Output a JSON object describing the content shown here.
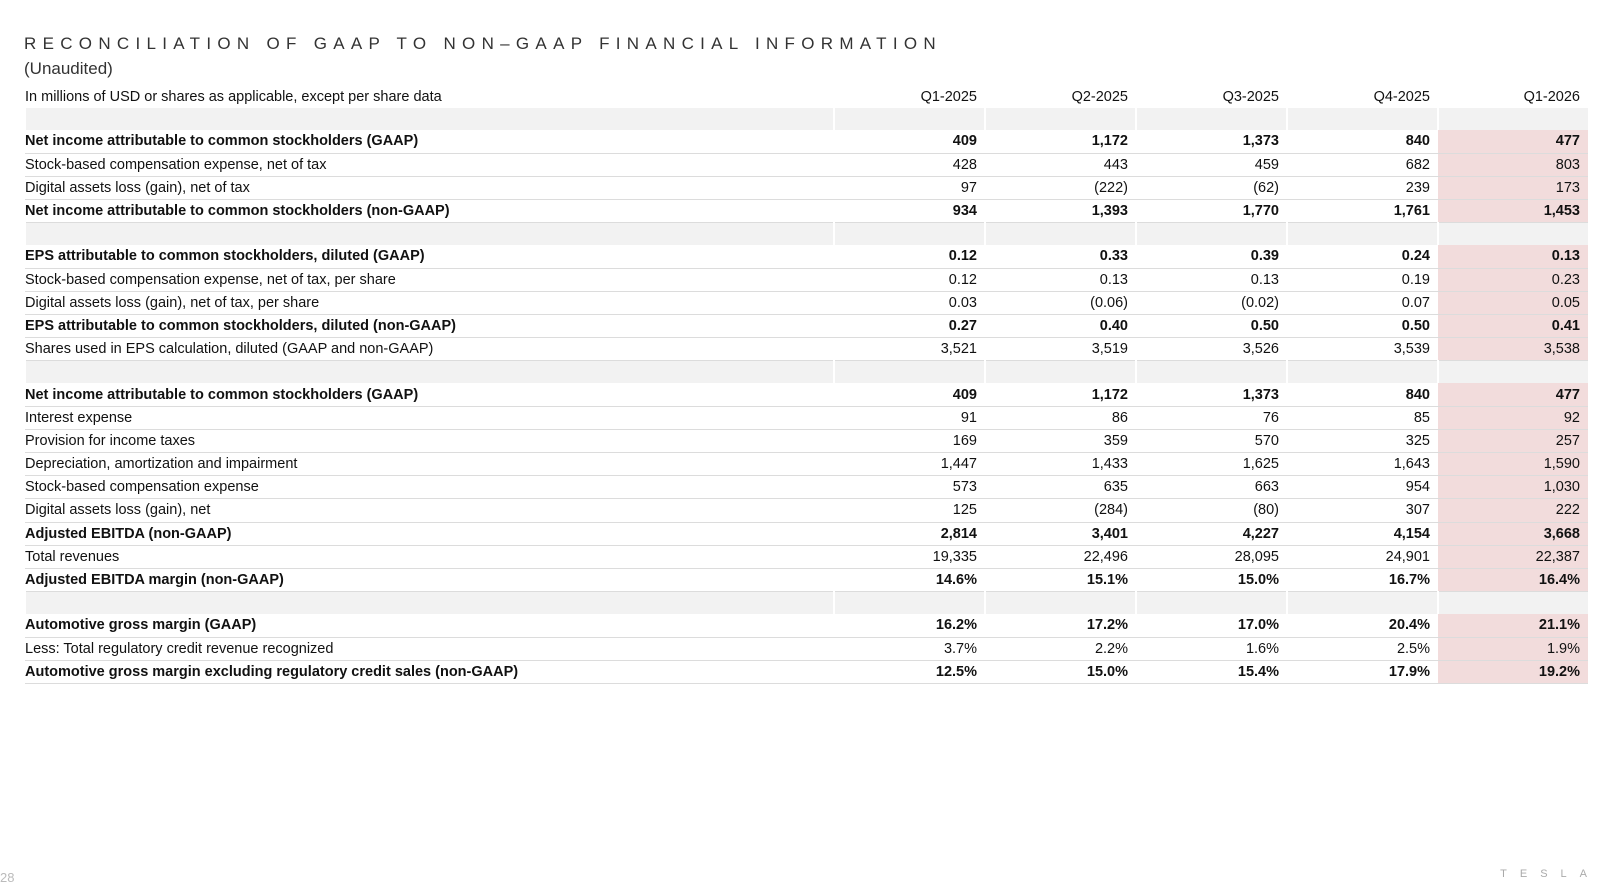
{
  "header": {
    "title": "RECONCILIATION OF GAAP TO NON–GAAP FINANCIAL INFORMATION",
    "subtitle": "(Unaudited)"
  },
  "table": {
    "columns": [
      "In millions of USD or shares as applicable, except per share data",
      "Q1-2025",
      "Q2-2025",
      "Q3-2025",
      "Q4-2025",
      "Q1-2026"
    ],
    "sections": [
      {
        "rows": [
          {
            "bold": true,
            "cells": [
              "Net income attributable to common stockholders (GAAP)",
              "409",
              "1,172",
              "1,373",
              "840",
              "477"
            ]
          },
          {
            "bold": false,
            "cells": [
              "Stock-based compensation expense, net of tax",
              "428",
              "443",
              "459",
              "682",
              "803"
            ]
          },
          {
            "bold": false,
            "cells": [
              "Digital assets loss (gain), net of tax",
              "97",
              "(222)",
              "(62)",
              "239",
              "173"
            ]
          },
          {
            "bold": true,
            "cells": [
              "Net income attributable to common stockholders (non-GAAP)",
              "934",
              "1,393",
              "1,770",
              "1,761",
              "1,453"
            ]
          }
        ]
      },
      {
        "rows": [
          {
            "bold": true,
            "cells": [
              "EPS attributable to common stockholders, diluted (GAAP)",
              "0.12",
              "0.33",
              "0.39",
              "0.24",
              "0.13"
            ]
          },
          {
            "bold": false,
            "cells": [
              "Stock-based compensation expense, net of tax, per share",
              "0.12",
              "0.13",
              "0.13",
              "0.19",
              "0.23"
            ]
          },
          {
            "bold": false,
            "cells": [
              "Digital assets loss (gain), net of tax, per share",
              "0.03",
              "(0.06)",
              "(0.02)",
              "0.07",
              "0.05"
            ]
          },
          {
            "bold": true,
            "cells": [
              "EPS attributable to common stockholders, diluted (non-GAAP)",
              "0.27",
              "0.40",
              "0.50",
              "0.50",
              "0.41"
            ]
          },
          {
            "bold": false,
            "cells": [
              "Shares used in EPS calculation, diluted (GAAP and non-GAAP)",
              "3,521",
              "3,519",
              "3,526",
              "3,539",
              "3,538"
            ]
          }
        ]
      },
      {
        "rows": [
          {
            "bold": true,
            "cells": [
              "Net income attributable to common stockholders (GAAP)",
              "409",
              "1,172",
              "1,373",
              "840",
              "477"
            ]
          },
          {
            "bold": false,
            "cells": [
              "Interest expense",
              "91",
              "86",
              "76",
              "85",
              "92"
            ]
          },
          {
            "bold": false,
            "cells": [
              "Provision for income taxes",
              "169",
              "359",
              "570",
              "325",
              "257"
            ]
          },
          {
            "bold": false,
            "cells": [
              "Depreciation, amortization and impairment",
              "1,447",
              "1,433",
              "1,625",
              "1,643",
              "1,590"
            ]
          },
          {
            "bold": false,
            "cells": [
              "Stock-based compensation expense",
              "573",
              "635",
              "663",
              "954",
              "1,030"
            ]
          },
          {
            "bold": false,
            "cells": [
              "Digital assets loss (gain), net",
              "125",
              "(284)",
              "(80)",
              "307",
              "222"
            ]
          },
          {
            "bold": true,
            "cells": [
              "Adjusted EBITDA (non-GAAP)",
              "2,814",
              "3,401",
              "4,227",
              "4,154",
              "3,668"
            ]
          },
          {
            "bold": false,
            "cells": [
              "Total revenues",
              "19,335",
              "22,496",
              "28,095",
              "24,901",
              "22,387"
            ]
          },
          {
            "bold": true,
            "cells": [
              "Adjusted EBITDA margin (non-GAAP)",
              "14.6%",
              "15.1%",
              "15.0%",
              "16.7%",
              "16.4%"
            ]
          }
        ]
      },
      {
        "rows": [
          {
            "bold": true,
            "cells": [
              "Automotive gross margin (GAAP)",
              "16.2%",
              "17.2%",
              "17.0%",
              "20.4%",
              "21.1%"
            ]
          },
          {
            "bold": false,
            "cells": [
              "Less: Total regulatory credit revenue recognized",
              "3.7%",
              "2.2%",
              "1.6%",
              "2.5%",
              "1.9%"
            ]
          },
          {
            "bold": true,
            "cells": [
              "Automotive gross margin excluding regulatory credit sales (non-GAAP)",
              "12.5%",
              "15.0%",
              "15.4%",
              "17.9%",
              "19.2%"
            ]
          }
        ]
      }
    ]
  },
  "footer": {
    "page": "28",
    "logo": "TESLA"
  }
}
